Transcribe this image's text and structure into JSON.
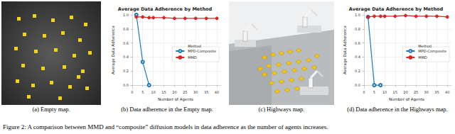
{
  "subcaptions": [
    "(a) Empty map.",
    "(b) Data adherence in the Empty map.",
    "(c) Highways map.",
    "(d) Data adherence in the Highways map."
  ],
  "caption": "Figure 2: A comparison between MMD and “composite” diffusion models in data adherence as the number of agents increases.",
  "chart_data": [
    {
      "type": "line",
      "title": "Average Data Adherence by Method",
      "x_label": "Number of Agents",
      "y_label": "Average Data Adherence",
      "xlim": [
        -1,
        42
      ],
      "xticks": [
        0,
        5,
        10,
        15,
        20,
        25,
        30,
        35,
        40
      ],
      "ylim": [
        -0.05,
        1.05
      ],
      "yticks": [
        {
          "value": 0,
          "label": "0.0"
        },
        0.2,
        0.4,
        0.6,
        0.8,
        {
          "value": 1,
          "label": "1.0"
        }
      ],
      "grid": true,
      "legend": "right",
      "legend_title": "Method",
      "series": [
        {
          "name": "MPD-Composite",
          "color": "#1f77b4",
          "marker": "open_circle",
          "x": [
            2,
            5,
            8
          ],
          "values": [
            1.0,
            0.33,
            0.0
          ]
        },
        {
          "name": "MMD",
          "color": "#d62728",
          "marker": "circle",
          "x": [
            2,
            5,
            8,
            10,
            15,
            20,
            25,
            30,
            35,
            40
          ],
          "values": [
            0.97,
            0.97,
            0.96,
            0.96,
            0.96,
            0.95,
            0.95,
            0.95,
            0.95,
            0.95
          ]
        }
      ]
    },
    {
      "type": "line",
      "title": "Average Data Adherence by Method",
      "x_label": "Number of Agents",
      "y_label": "Average Data Adherence",
      "xlim": [
        -1,
        42
      ],
      "xticks": [
        0,
        5,
        10,
        15,
        20,
        25,
        30,
        35,
        40
      ],
      "ylim": [
        -0.05,
        1.05
      ],
      "yticks": [
        {
          "value": 0,
          "label": "0.0"
        },
        0.2,
        0.4,
        0.6,
        0.8,
        {
          "value": 1,
          "label": "1.0"
        }
      ],
      "grid": true,
      "legend": "right",
      "legend_title": "Method",
      "series": [
        {
          "name": "MPD-Composite",
          "color": "#1f77b4",
          "marker": "open_circle",
          "x": [
            2,
            5,
            8
          ],
          "values": [
            0.97,
            0.0,
            0.0
          ]
        },
        {
          "name": "MMD",
          "color": "#d62728",
          "marker": "circle",
          "x": [
            2,
            5,
            8,
            10,
            15,
            20,
            25,
            30,
            35,
            40
          ],
          "values": [
            0.97,
            0.98,
            0.98,
            0.98,
            0.98,
            0.99,
            0.98,
            0.98,
            0.98,
            0.97
          ]
        }
      ]
    }
  ]
}
